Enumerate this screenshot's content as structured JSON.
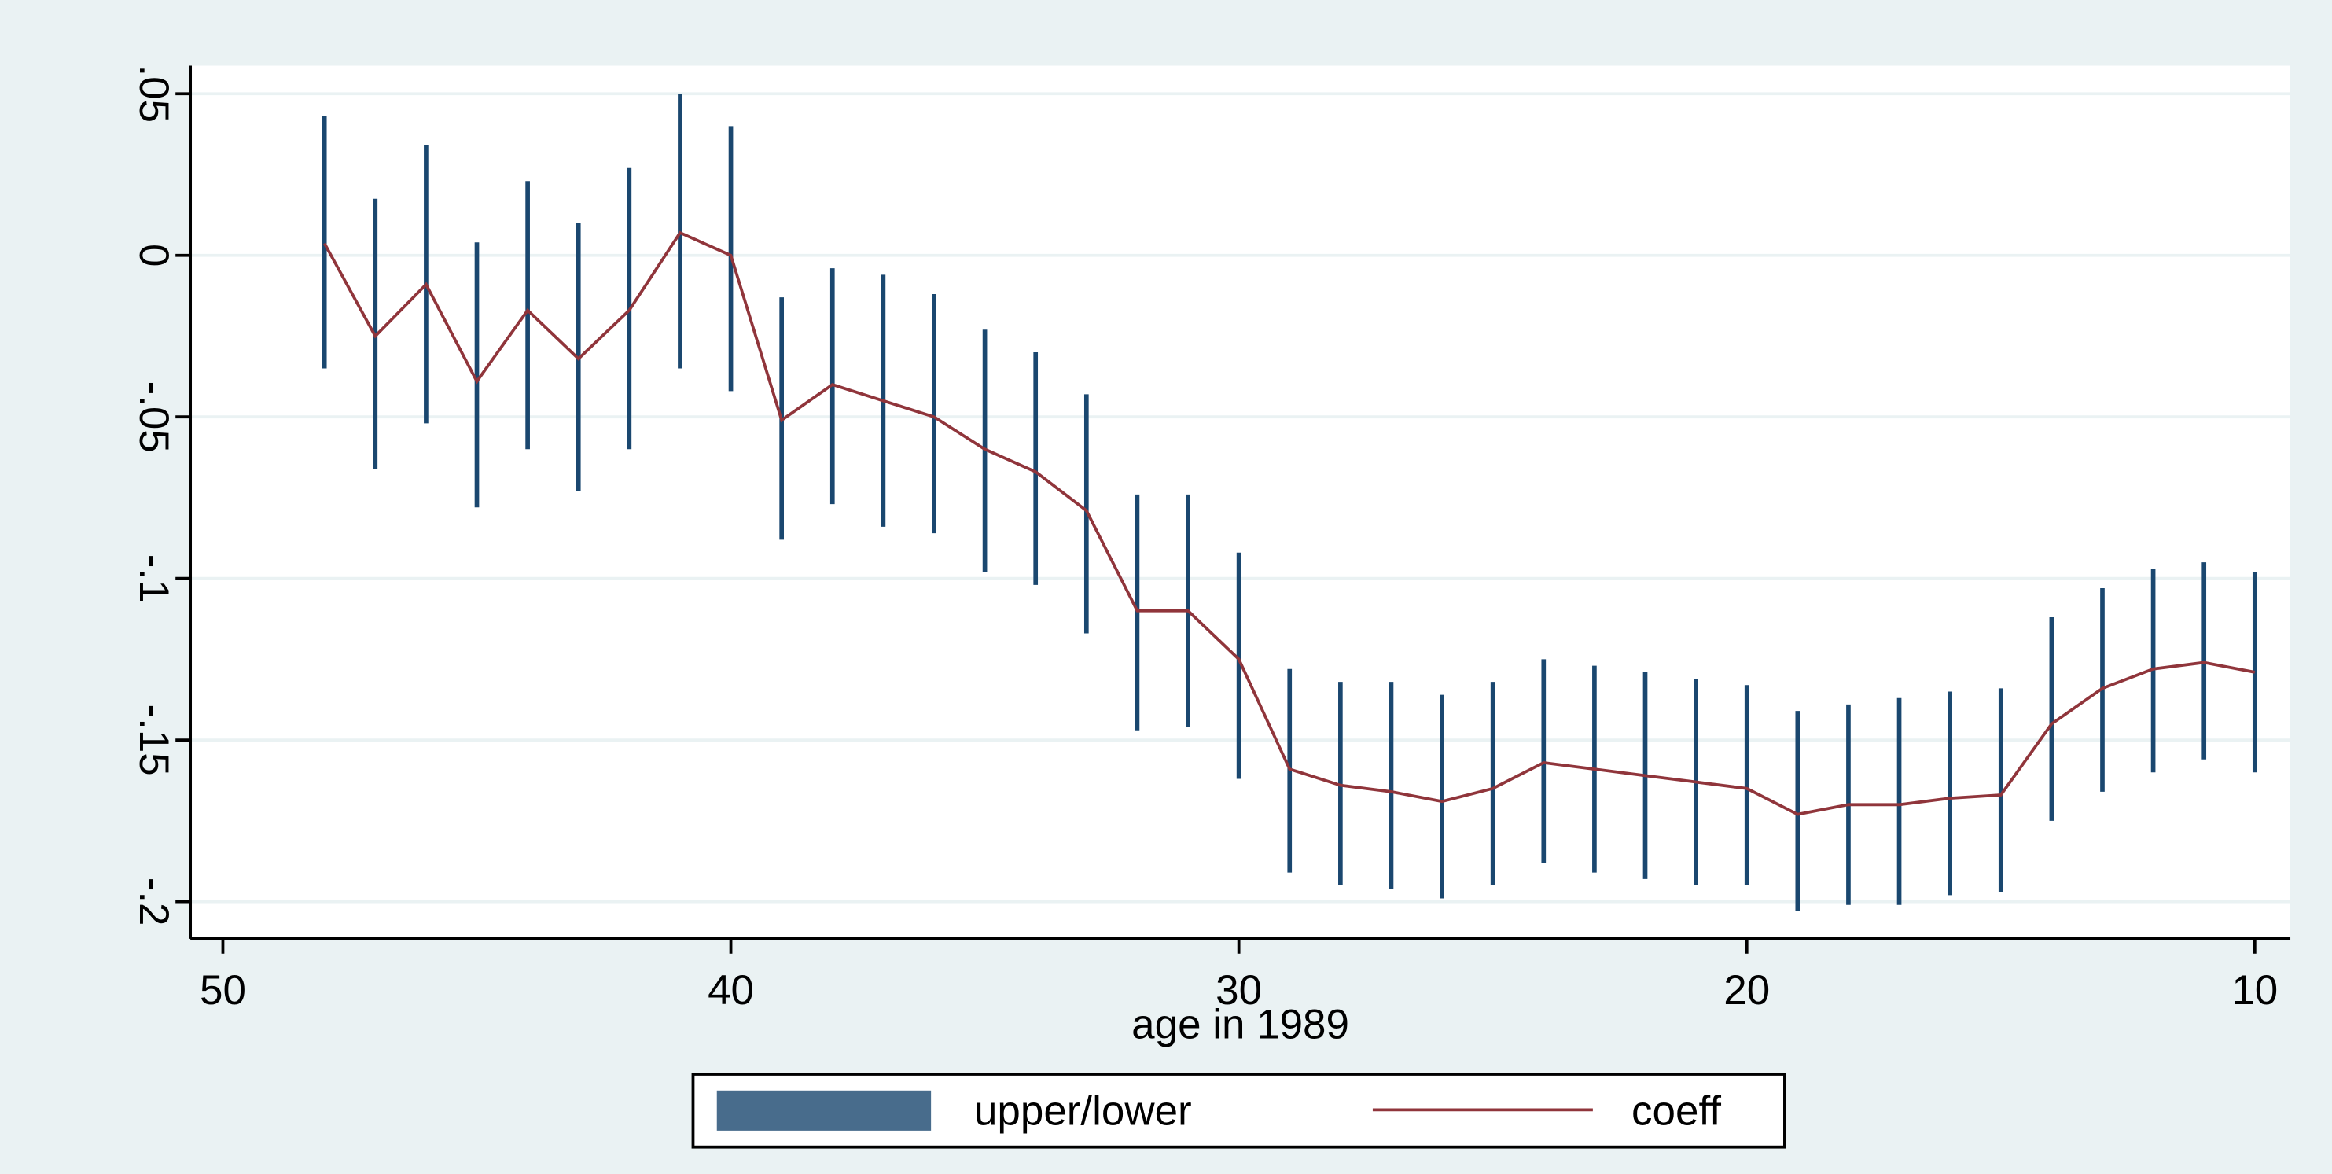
{
  "chart_data": {
    "type": "line",
    "x_label": "age in 1989",
    "x": [
      48,
      47,
      46,
      45,
      44,
      43,
      42,
      41,
      40,
      39,
      38,
      37,
      36,
      35,
      34,
      33,
      32,
      31,
      30,
      29,
      28,
      27,
      26,
      25,
      24,
      23,
      22,
      21,
      20,
      19,
      18,
      17,
      16,
      15,
      14,
      13,
      12,
      11,
      10
    ],
    "series": [
      {
        "name": "upper/lower",
        "color": "#1a476f",
        "upper": [
          0.043,
          0.0175,
          0.034,
          0.004,
          0.023,
          0.01,
          0.027,
          0.05,
          0.04,
          -0.013,
          -0.004,
          -0.006,
          -0.012,
          -0.023,
          -0.03,
          -0.043,
          -0.074,
          -0.074,
          -0.092,
          -0.128,
          -0.132,
          -0.132,
          -0.136,
          -0.132,
          -0.125,
          -0.127,
          -0.129,
          -0.131,
          -0.133,
          -0.141,
          -0.139,
          -0.137,
          -0.135,
          -0.134,
          -0.112,
          -0.103,
          -0.097,
          -0.095,
          -0.098
        ],
        "lower": [
          -0.035,
          -0.066,
          -0.052,
          -0.078,
          -0.06,
          -0.073,
          -0.06,
          -0.035,
          -0.042,
          -0.088,
          -0.077,
          -0.084,
          -0.086,
          -0.098,
          -0.102,
          -0.117,
          -0.147,
          -0.146,
          -0.162,
          -0.191,
          -0.195,
          -0.196,
          -0.199,
          -0.195,
          -0.188,
          -0.191,
          -0.193,
          -0.195,
          -0.195,
          -0.203,
          -0.201,
          -0.201,
          -0.198,
          -0.197,
          -0.175,
          -0.166,
          -0.16,
          -0.156,
          -0.16
        ]
      },
      {
        "name": "coeff",
        "color": "#90353b",
        "values": [
          0.0037,
          -0.025,
          -0.009,
          -0.039,
          -0.017,
          -0.032,
          -0.017,
          0.007,
          0.0,
          -0.051,
          -0.04,
          -0.045,
          -0.05,
          -0.06,
          -0.067,
          -0.079,
          -0.11,
          -0.11,
          -0.125,
          -0.159,
          -0.164,
          -0.166,
          -0.169,
          -0.165,
          -0.157,
          -0.159,
          -0.161,
          -0.163,
          -0.165,
          -0.173,
          -0.17,
          -0.17,
          -0.168,
          -0.167,
          -0.145,
          -0.134,
          -0.128,
          -0.126,
          -0.129
        ]
      }
    ],
    "xlim": [
      50.64,
      9.3
    ],
    "xticks": [
      50,
      40,
      30,
      20,
      10
    ],
    "ylim": [
      -0.2115,
      0.0587
    ],
    "yticks": [
      {
        "value": 0.05,
        "label": ".05"
      },
      0,
      {
        "value": -0.05,
        "label": "-.05"
      },
      {
        "value": -0.1,
        "label": "-.1"
      },
      {
        "value": -0.15,
        "label": "-.15"
      },
      {
        "value": -0.2,
        "label": "-.2"
      }
    ],
    "grid": true
  }
}
